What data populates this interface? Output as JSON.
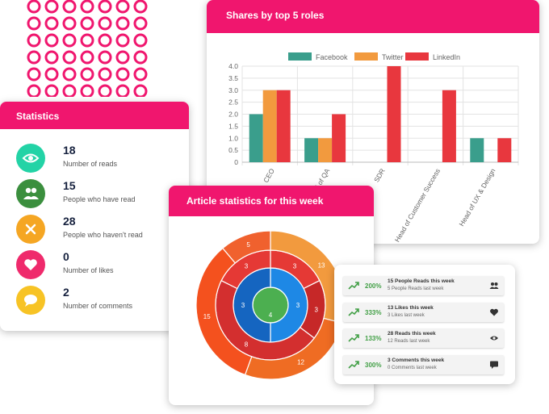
{
  "colors": {
    "brand": "#f0166e",
    "facebook": "#3a9e8c",
    "twitter": "#f29a3e",
    "linkedin": "#e8373e",
    "trend_green": "#43a047"
  },
  "shares_card": {
    "title": "Shares by top 5 roles"
  },
  "stats_card": {
    "title": "Statistics",
    "items": [
      {
        "value": "18",
        "label": "Number of reads",
        "icon": "eye-icon",
        "color": "#23d3a6"
      },
      {
        "value": "15",
        "label": "People who have read",
        "icon": "people-icon",
        "color": "#3b8f3e"
      },
      {
        "value": "28",
        "label": "People who haven't read",
        "icon": "close-icon",
        "color": "#f5a623"
      },
      {
        "value": "0",
        "label": "Number of likes",
        "icon": "heart-icon",
        "color": "#ef2a6c"
      },
      {
        "value": "2",
        "label": "Number of comments",
        "icon": "comment-icon",
        "color": "#f7c325"
      }
    ]
  },
  "article_card": {
    "title": "Article statistics for this week"
  },
  "trend_card": {
    "items": [
      {
        "pct": "200%",
        "title": "15 People Reads this week",
        "sub": "5 People Reads last week",
        "icon": "people-icon"
      },
      {
        "pct": "333%",
        "title": "13 Likes this week",
        "sub": "3 Likes last week",
        "icon": "heart-icon"
      },
      {
        "pct": "133%",
        "title": "28 Reads this week",
        "sub": "12 Reads last week",
        "icon": "eye-icon"
      },
      {
        "pct": "300%",
        "title": "3 Comments this week",
        "sub": "0 Comments last week",
        "icon": "comment-icon"
      }
    ]
  },
  "chart_data": [
    {
      "type": "bar",
      "title": "Shares by top 5 roles",
      "categories": [
        "CEO",
        "Head of QA",
        "SDR",
        "Head of Customer Success",
        "Head of UX & Design"
      ],
      "series": [
        {
          "name": "Facebook",
          "values": [
            2,
            1,
            0,
            0,
            1
          ],
          "color": "#3a9e8c"
        },
        {
          "name": "Twitter",
          "values": [
            3,
            1,
            0,
            0,
            0
          ],
          "color": "#f29a3e"
        },
        {
          "name": "LinkedIn",
          "values": [
            3,
            2,
            4,
            3,
            1
          ],
          "color": "#e8373e"
        }
      ],
      "ylim": [
        0,
        4
      ],
      "yticks": [
        "0",
        "0.5",
        "1.0",
        "1.5",
        "2.0",
        "2.5",
        "3.0",
        "3.5",
        "4.0"
      ],
      "legend": "top",
      "grid": true
    },
    {
      "type": "pie",
      "title": "Article statistics for this week",
      "rings": [
        {
          "slices": [
            {
              "value": 4,
              "label": "4",
              "color": "#4caf50"
            }
          ]
        },
        {
          "slices": [
            {
              "value": 3,
              "label": "3",
              "color": "#1e88e5"
            },
            {
              "value": 3,
              "label": "3",
              "color": "#1565c0"
            }
          ]
        },
        {
          "slices": [
            {
              "value": 3,
              "label": "3",
              "color": "#e53935"
            },
            {
              "value": 3,
              "label": "3",
              "color": "#c62828"
            },
            {
              "value": 8,
              "label": "8",
              "color": "#d32f2f"
            },
            {
              "value": 3,
              "label": "3",
              "color": "#e53935"
            }
          ]
        },
        {
          "slices": [
            {
              "value": 13,
              "label": "13",
              "color": "#f29a3e"
            },
            {
              "value": 12,
              "label": "12",
              "color": "#ef6c23"
            },
            {
              "value": 15,
              "label": "15",
              "color": "#f4511e"
            },
            {
              "value": 5,
              "label": "5",
              "color": "#f0612e"
            }
          ]
        }
      ]
    }
  ]
}
